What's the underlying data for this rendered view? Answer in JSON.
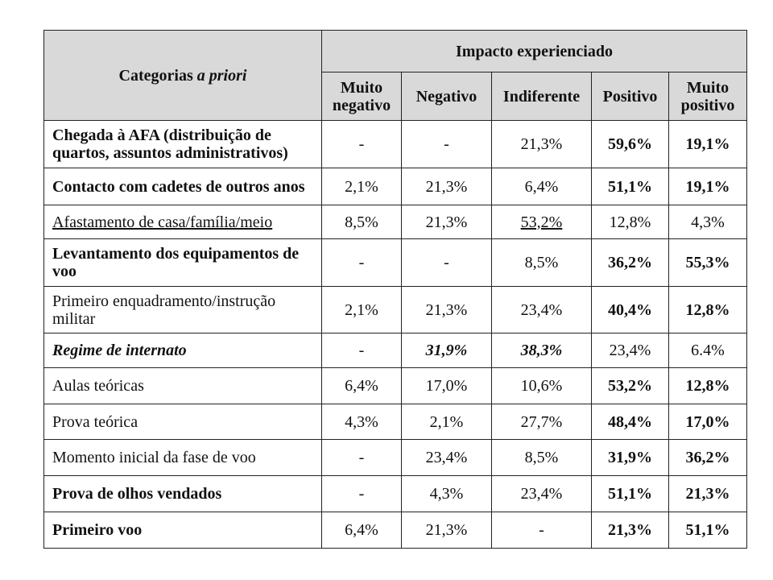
{
  "header": {
    "categories_label": "Categorias",
    "categories_label_italic": "a priori",
    "impact_label": "Impacto experienciado",
    "columns": [
      "Muito negativo",
      "Negativo",
      "Indiferente",
      "Positivo",
      "Muito positivo"
    ]
  },
  "rows": [
    {
      "label": "Chegada à AFA (distribuição de quartos, assuntos administrativos)",
      "values": [
        "-",
        "-",
        "21,3%",
        "59,6%",
        "19,1%"
      ]
    },
    {
      "label": "Contacto com cadetes de outros anos",
      "values": [
        "2,1%",
        "21,3%",
        "6,4%",
        "51,1%",
        "19,1%"
      ]
    },
    {
      "label": "Afastamento de casa/família/meio",
      "values": [
        "8,5%",
        "21,3%",
        "53,2%",
        "12,8%",
        "4,3%"
      ]
    },
    {
      "label": "Levantamento dos equipamentos de voo",
      "values": [
        "-",
        "-",
        "8,5%",
        "36,2%",
        "55,3%"
      ]
    },
    {
      "label": "Primeiro enquadramento/instrução militar",
      "values": [
        "2,1%",
        "21,3%",
        "23,4%",
        "40,4%",
        "12,8%"
      ]
    },
    {
      "label": "Regime de internato",
      "values": [
        "-",
        "31,9%",
        "38,3%",
        "23,4%",
        "6.4%"
      ]
    },
    {
      "label": "Aulas teóricas",
      "values": [
        "6,4%",
        "17,0%",
        "10,6%",
        "53,2%",
        "12,8%"
      ]
    },
    {
      "label": "Prova teórica",
      "values": [
        "4,3%",
        "2,1%",
        "27,7%",
        "48,4%",
        "17,0%"
      ]
    },
    {
      "label": "Momento inicial da fase de voo",
      "values": [
        "-",
        "23,4%",
        "8,5%",
        "31,9%",
        "36,2%"
      ]
    },
    {
      "label": "Prova de olhos vendados",
      "values": [
        "-",
        "4,3%",
        "23,4%",
        "51,1%",
        "21,3%"
      ]
    },
    {
      "label": "Primeiro voo",
      "values": [
        "6,4%",
        "21,3%",
        "-",
        "21,3%",
        "51,1%"
      ]
    }
  ]
}
